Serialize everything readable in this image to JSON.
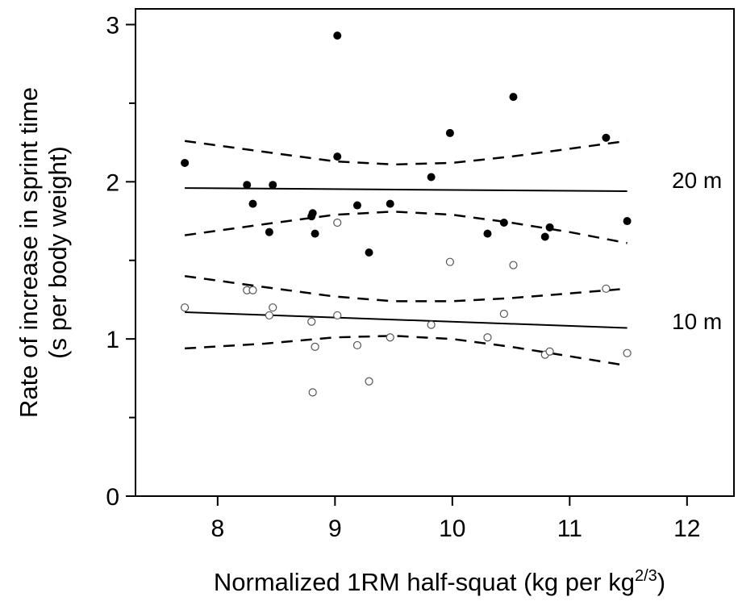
{
  "chart_data": {
    "type": "scatter",
    "xlabel_main": "Normalized 1RM half-squat (kg per kg",
    "xlabel_sup": "2/3",
    "xlabel_end": ")",
    "ylabel_line1": "Rate of increase in sprint time",
    "ylabel_line2": "(s per body weight)",
    "xlim": [
      7.3,
      12.4
    ],
    "ylim": [
      0,
      3.1
    ],
    "xticks": [
      8,
      9,
      10,
      11,
      12
    ],
    "yticks": [
      0,
      1,
      2,
      3
    ],
    "yticks_minor": [
      0.5,
      1.5,
      2.5
    ],
    "grid": false,
    "series": [
      {
        "name": "20 m",
        "marker": "filled",
        "points": [
          [
            7.72,
            2.12
          ],
          [
            8.25,
            1.98
          ],
          [
            8.3,
            1.86
          ],
          [
            8.44,
            1.68
          ],
          [
            8.47,
            1.98
          ],
          [
            8.8,
            1.78
          ],
          [
            8.81,
            1.8
          ],
          [
            8.83,
            1.67
          ],
          [
            9.02,
            2.93
          ],
          [
            9.02,
            2.16
          ],
          [
            9.19,
            1.85
          ],
          [
            9.29,
            1.55
          ],
          [
            9.47,
            1.86
          ],
          [
            9.82,
            2.03
          ],
          [
            9.98,
            2.31
          ],
          [
            10.3,
            1.67
          ],
          [
            10.44,
            1.74
          ],
          [
            10.52,
            2.54
          ],
          [
            10.79,
            1.65
          ],
          [
            10.83,
            1.71
          ],
          [
            11.31,
            2.28
          ],
          [
            11.49,
            1.75
          ]
        ],
        "fit": [
          [
            7.72,
            1.96
          ],
          [
            11.49,
            1.94
          ]
        ],
        "ci_upper": [
          [
            7.72,
            2.26
          ],
          [
            8.4,
            2.19
          ],
          [
            9.0,
            2.13
          ],
          [
            9.5,
            2.11
          ],
          [
            10.0,
            2.12
          ],
          [
            10.5,
            2.16
          ],
          [
            11.0,
            2.21
          ],
          [
            11.49,
            2.26
          ]
        ],
        "ci_lower": [
          [
            7.72,
            1.66
          ],
          [
            8.4,
            1.73
          ],
          [
            9.0,
            1.79
          ],
          [
            9.5,
            1.81
          ],
          [
            10.0,
            1.79
          ],
          [
            10.5,
            1.74
          ],
          [
            11.0,
            1.68
          ],
          [
            11.49,
            1.61
          ]
        ]
      },
      {
        "name": "10 m",
        "marker": "open",
        "points": [
          [
            7.72,
            1.2
          ],
          [
            8.25,
            1.31
          ],
          [
            8.3,
            1.31
          ],
          [
            8.44,
            1.15
          ],
          [
            8.47,
            1.2
          ],
          [
            8.8,
            1.11
          ],
          [
            8.81,
            0.66
          ],
          [
            8.83,
            0.95
          ],
          [
            9.02,
            1.74
          ],
          [
            9.02,
            1.15
          ],
          [
            9.19,
            0.96
          ],
          [
            9.29,
            0.73
          ],
          [
            9.47,
            1.01
          ],
          [
            9.82,
            1.09
          ],
          [
            9.98,
            1.49
          ],
          [
            10.3,
            1.01
          ],
          [
            10.44,
            1.16
          ],
          [
            10.52,
            1.47
          ],
          [
            10.79,
            0.9
          ],
          [
            10.83,
            0.92
          ],
          [
            11.31,
            1.32
          ],
          [
            11.49,
            0.91
          ]
        ],
        "fit": [
          [
            7.72,
            1.17
          ],
          [
            11.49,
            1.07
          ]
        ],
        "ci_upper": [
          [
            7.72,
            1.4
          ],
          [
            8.4,
            1.33
          ],
          [
            9.0,
            1.27
          ],
          [
            9.5,
            1.24
          ],
          [
            10.0,
            1.24
          ],
          [
            10.5,
            1.26
          ],
          [
            11.0,
            1.29
          ],
          [
            11.49,
            1.32
          ]
        ],
        "ci_lower": [
          [
            7.72,
            0.94
          ],
          [
            8.4,
            0.97
          ],
          [
            9.0,
            1.01
          ],
          [
            9.5,
            1.02
          ],
          [
            10.0,
            1.0
          ],
          [
            10.5,
            0.95
          ],
          [
            11.0,
            0.89
          ],
          [
            11.49,
            0.83
          ]
        ]
      }
    ]
  }
}
